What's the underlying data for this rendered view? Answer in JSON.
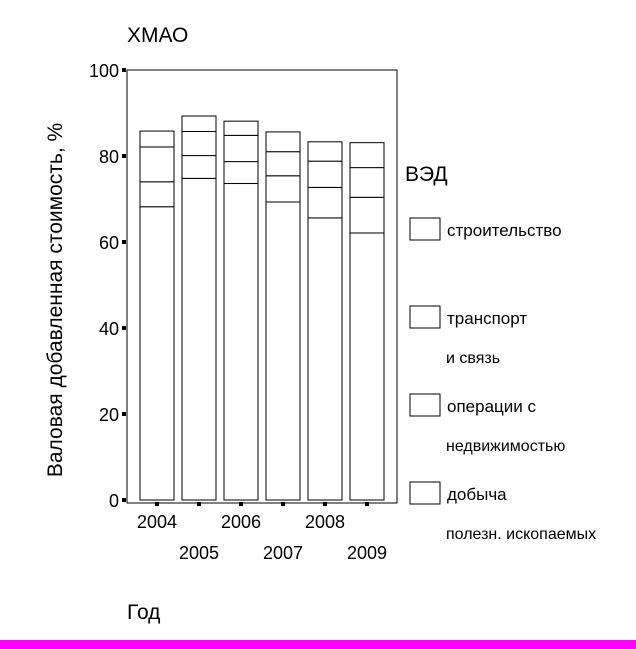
{
  "chart_data": {
    "type": "bar",
    "stacked": true,
    "title": "ХМАО",
    "xlabel": "Год",
    "ylabel": "Валовая добавленная стоимость, %",
    "ylim": [
      0,
      100
    ],
    "yticks": [
      0,
      20,
      40,
      60,
      80,
      100
    ],
    "categories": [
      "2004",
      "2005",
      "2006",
      "2007",
      "2008",
      "2009"
    ],
    "legend": {
      "title": "ВЭД",
      "placement": "right",
      "entries": [
        {
          "line1": "строительство",
          "line2": ""
        },
        {
          "line1": "транспорт",
          "line2": "и связь"
        },
        {
          "line1": "операции с",
          "line2": "недвижимостью"
        },
        {
          "line1": "добыча",
          "line2": "полезн. ископаемых"
        }
      ]
    },
    "series": [
      {
        "name": "добыча полезн. ископаемых",
        "values": [
          68.2,
          74.8,
          73.6,
          69.3,
          65.6,
          62.1
        ]
      },
      {
        "name": "операции с недвижимостью",
        "values": [
          5.8,
          5.3,
          5.1,
          6.1,
          7.1,
          8.3
        ]
      },
      {
        "name": "транспорт и связь",
        "values": [
          8.1,
          5.6,
          6.1,
          5.6,
          6.1,
          6.9
        ]
      },
      {
        "name": "строительство",
        "values": [
          3.7,
          3.6,
          3.3,
          4.6,
          4.5,
          5.8
        ]
      }
    ]
  },
  "colors": {
    "background": "#ffffff",
    "bar_fill": "#ffffff",
    "stroke": "#000000",
    "bottom_band": "#ff00ff"
  }
}
